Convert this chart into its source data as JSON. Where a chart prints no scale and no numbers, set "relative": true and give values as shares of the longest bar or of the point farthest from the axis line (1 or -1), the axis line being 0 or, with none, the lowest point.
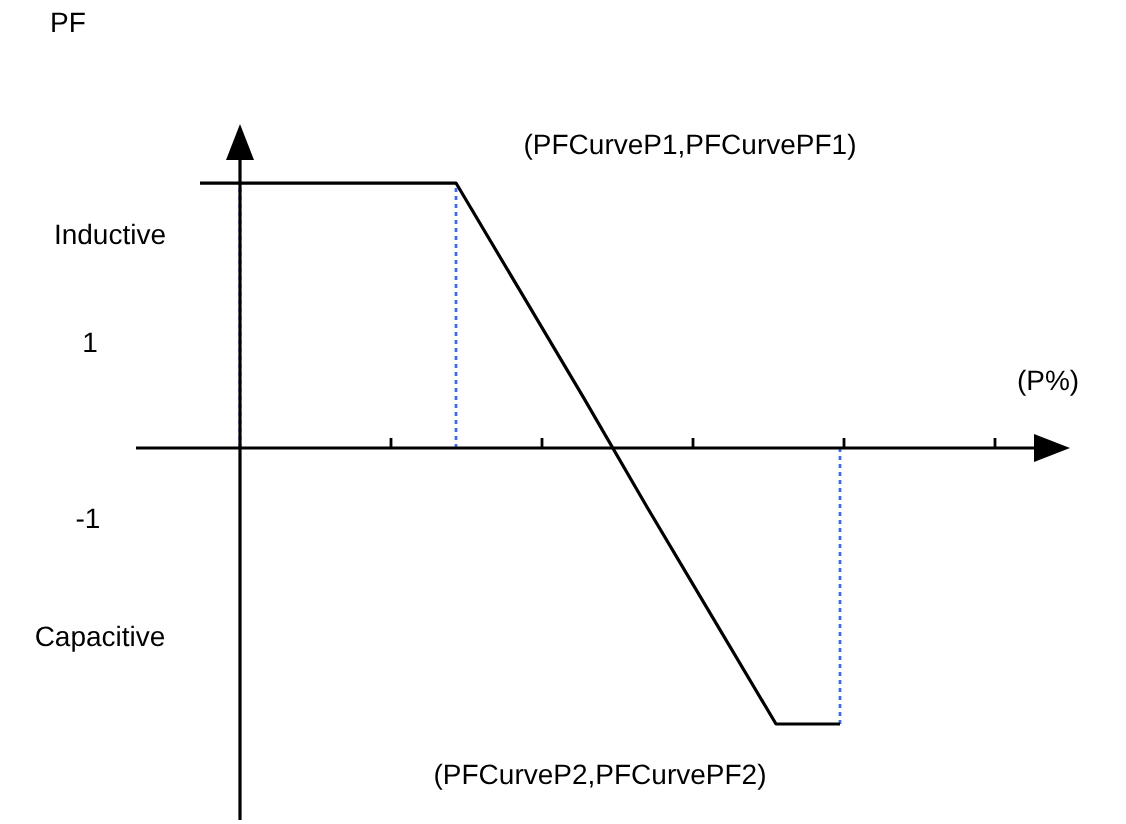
{
  "chart_data": {
    "type": "line",
    "relative": true,
    "categories": [
      null,
      null,
      null,
      null,
      null,
      null,
      null,
      null,
      null,
      null,
      null
    ],
    "series": [
      {
        "color": "#000000",
        "values": [
          0.96,
          0.96,
          0.96,
          0.96,
          0.96,
          0.57,
          0.18,
          -0.22,
          -0.61,
          -1,
          -1
        ]
      }
    ],
    "annotations": [
      "Inductive",
      "1",
      "-1",
      "Capacitive",
      "(PFCurveP1,PFCurvePF1)",
      "(PFCurveP2,PFCurvePF2)",
      "PF",
      "(P%)"
    ],
    "marker": "none",
    "line_style": "solid"
  }
}
